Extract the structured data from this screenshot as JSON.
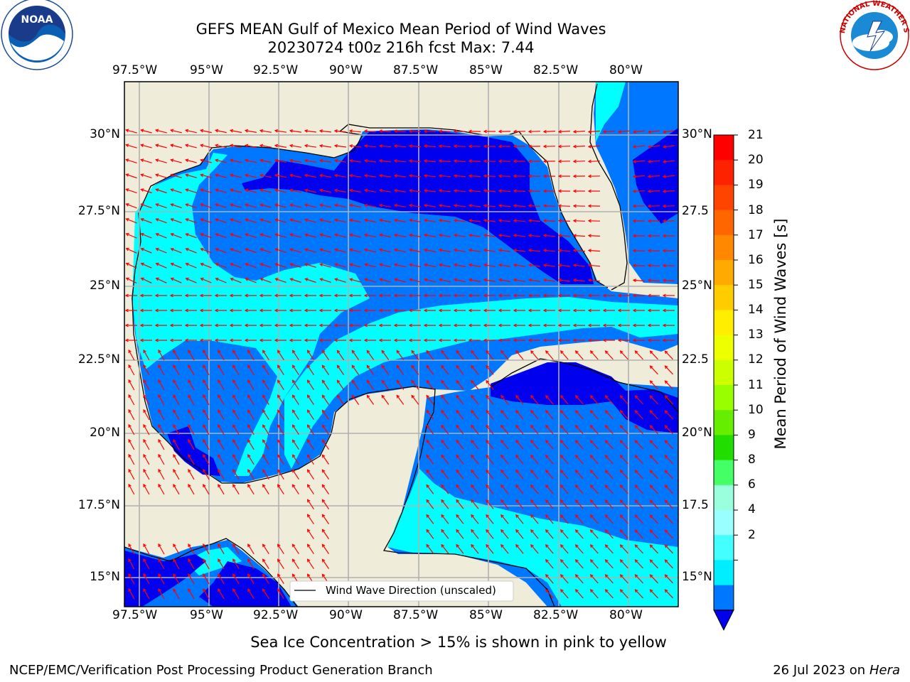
{
  "title": {
    "line1": "GEFS MEAN Gulf of Mexico Mean Period of Wind Waves",
    "line2": "20230724 t00z 216h fcst   Max: 7.44"
  },
  "axes": {
    "lon_labels": [
      "97.5°W",
      "95°W",
      "92.5°W",
      "90°W",
      "87.5°W",
      "85°W",
      "82.5°W",
      "80°W"
    ],
    "lat_labels_left": [
      "30°N",
      "27.5°N",
      "25°N",
      "22.5°N",
      "20°N",
      "17.5°N",
      "15°N"
    ],
    "lat_labels_right": [
      "30°N",
      "27.5",
      "25°N",
      "22.5",
      "20°N",
      "17.5",
      "15°N"
    ]
  },
  "colorbar": {
    "label": "Mean Period of Wind Waves [s]",
    "ticks": [
      "21",
      "20",
      "19",
      "18",
      "17",
      "16",
      "15",
      "14",
      "13",
      "12",
      "11",
      "10",
      "9",
      "8",
      "6",
      "4",
      "2"
    ],
    "colors": [
      "#ff0000",
      "#ff2200",
      "#ff4400",
      "#ff6600",
      "#ff8800",
      "#ffaa00",
      "#ffcc00",
      "#ffee00",
      "#eeff00",
      "#ccff00",
      "#99ff00",
      "#66ee00",
      "#22dd00",
      "#44ff66",
      "#99ffdd",
      "#99ffff",
      "#44ffff",
      "#00eeff",
      "#0077ff",
      "#0000ee"
    ]
  },
  "legend": {
    "label": "Wind Wave Direction (unscaled)"
  },
  "colors": {
    "land": "#efedda",
    "ocean_dark": "#0000ee",
    "ocean_mid": "#0077ff",
    "ocean_light": "#00ffff",
    "arrow": "#ff0000",
    "grid": "#b0b0b0"
  },
  "logos": {
    "left": "NOAA",
    "right": "NATIONAL WEATHER SERVICE"
  },
  "footer": {
    "note": "Sea Ice Concentration > 15% is shown in pink to yellow",
    "branch": "NCEP/EMC/Verification Post Processing Product Generation Branch",
    "date": "26 Jul 2023 on ",
    "machine": "Hera"
  }
}
